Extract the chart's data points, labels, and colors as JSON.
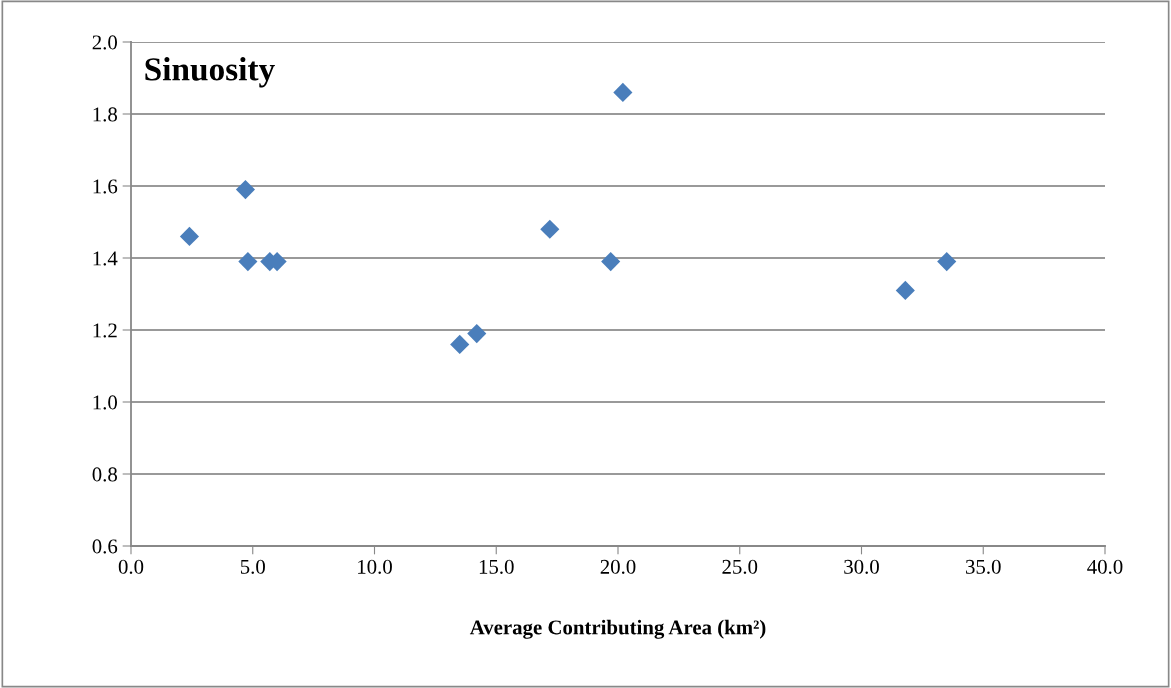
{
  "chart_data": {
    "type": "scatter",
    "title": "Sinuosity",
    "xlabel": "Average Contributing Area (km²)",
    "x": [
      2.4,
      4.7,
      4.8,
      5.7,
      6.0,
      13.5,
      14.2,
      17.2,
      19.7,
      20.2,
      31.8,
      33.5
    ],
    "series": [
      {
        "color": "#4a7ebb",
        "values": [
          1.46,
          1.59,
          1.39,
          1.39,
          1.39,
          1.16,
          1.19,
          1.48,
          1.39,
          1.86,
          1.31,
          1.39
        ]
      }
    ],
    "xlim": [
      0,
      40
    ],
    "xticks": [
      {
        "value": 0,
        "label": "0.0"
      },
      {
        "value": 5,
        "label": "5.0"
      },
      {
        "value": 10,
        "label": "10.0"
      },
      {
        "value": 15,
        "label": "15.0"
      },
      {
        "value": 20,
        "label": "20.0"
      },
      {
        "value": 25,
        "label": "25.0"
      },
      {
        "value": 30,
        "label": "30.0"
      },
      {
        "value": 35,
        "label": "35.0"
      },
      {
        "value": 40,
        "label": "40.0"
      }
    ],
    "ylim": [
      0.6,
      2.0
    ],
    "yticks": [
      {
        "value": 0.6,
        "label": "0.6"
      },
      {
        "value": 0.8,
        "label": "0.8"
      },
      {
        "value": 1.0,
        "label": "1.0"
      },
      {
        "value": 1.2,
        "label": "1.2"
      },
      {
        "value": 1.4,
        "label": "1.4"
      },
      {
        "value": 1.6,
        "label": "1.6"
      },
      {
        "value": 1.8,
        "label": "1.8"
      },
      {
        "value": 2.0,
        "label": "2.0"
      }
    ],
    "grid": "y",
    "marker": "diamond"
  }
}
